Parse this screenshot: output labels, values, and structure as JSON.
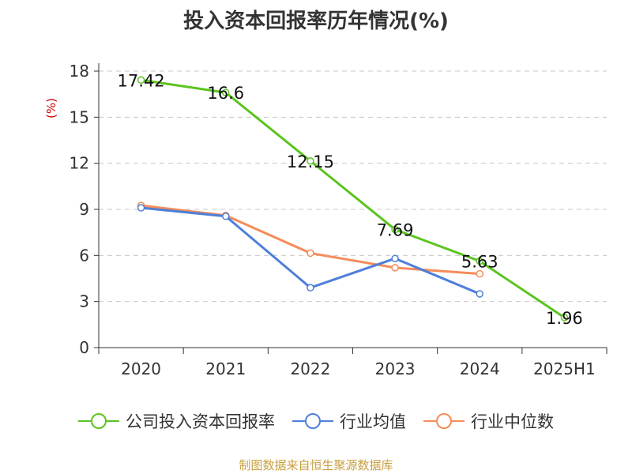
{
  "title": "投入资本回报率历年情况(%)",
  "source": "制图数据来自恒生聚源数据库",
  "chart_data": {
    "type": "line",
    "title": "投入资本回报率历年情况(%)",
    "ylabel": "(%)",
    "xlabel": "",
    "categories": [
      "2020",
      "2021",
      "2022",
      "2023",
      "2024",
      "2025H1"
    ],
    "ylim": [
      0,
      18
    ],
    "yticks": [
      0,
      3,
      6,
      9,
      12,
      15,
      18
    ],
    "grid": true,
    "legend_position": "bottom",
    "series": [
      {
        "name": "公司投入资本回报率",
        "color": "#5bc41e",
        "values": [
          17.42,
          16.6,
          12.15,
          7.69,
          5.63,
          1.96
        ],
        "labels": [
          "17.42",
          "16.6",
          "12.15",
          "7.69",
          "5.63",
          "1.96"
        ]
      },
      {
        "name": "行业均值",
        "color": "#4e7fd9",
        "values": [
          9.1,
          8.55,
          3.9,
          5.8,
          3.5,
          null
        ]
      },
      {
        "name": "行业中位数",
        "color": "#f58c5a",
        "values": [
          9.25,
          8.6,
          6.15,
          5.2,
          4.8,
          null
        ]
      }
    ]
  }
}
